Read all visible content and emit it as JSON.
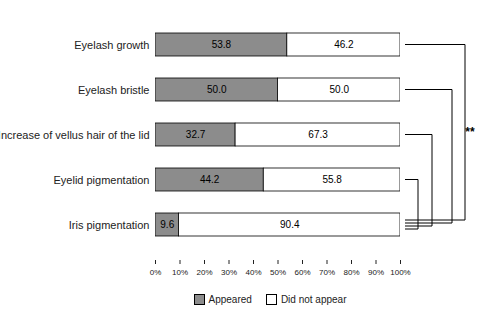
{
  "chart_data": {
    "type": "bar",
    "orientation": "horizontal",
    "stacked": true,
    "data_labels": true,
    "categories": [
      "Eyelash growth",
      "Eyelash bristle",
      "Increase of vellus hair of the lid",
      "Eyelid pigmentation",
      "Iris pigmentation"
    ],
    "series": [
      {
        "name": "Appeared",
        "color": "#8c8c8c",
        "values": [
          53.8,
          50.0,
          32.7,
          44.2,
          9.6
        ],
        "value_labels": [
          "53.8",
          "50.0",
          "32.7",
          "44.2",
          "9.6"
        ]
      },
      {
        "name": "Did not appear",
        "color": "#ffffff",
        "values": [
          46.2,
          50.0,
          67.3,
          55.8,
          90.4
        ],
        "value_labels": [
          "46.2",
          "50.0",
          "67.3",
          "55.8",
          "90.4"
        ]
      }
    ],
    "xlim": [
      0,
      100
    ],
    "xticks": [
      {
        "value": 0,
        "label": "0%"
      },
      {
        "value": 10,
        "label": "10%"
      },
      {
        "value": 20,
        "label": "20%"
      },
      {
        "value": 30,
        "label": "30%"
      },
      {
        "value": 40,
        "label": "40%"
      },
      {
        "value": 50,
        "label": "50%"
      },
      {
        "value": 60,
        "label": "60%"
      },
      {
        "value": 70,
        "label": "70%"
      },
      {
        "value": 80,
        "label": "80%"
      },
      {
        "value": 90,
        "label": "90%"
      },
      {
        "value": 100,
        "label": "100%"
      }
    ],
    "legend": "bottom",
    "annotations": [
      {
        "from": "Eyelash growth",
        "to": "Iris pigmentation",
        "text": "**"
      },
      {
        "from": "Eyelash bristle",
        "to": "Iris pigmentation"
      },
      {
        "from": "Increase of vellus hair of the lid",
        "to": "Iris pigmentation"
      },
      {
        "from": "Eyelid pigmentation",
        "to": "Iris pigmentation"
      }
    ]
  }
}
